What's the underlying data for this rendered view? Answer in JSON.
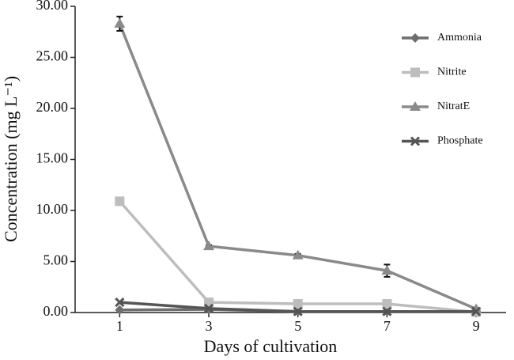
{
  "chart_data": {
    "type": "line",
    "xlabel": "Days of cultivation",
    "ylabel": "Concentration (mg L⁻¹)",
    "xlim": [
      0,
      9.85
    ],
    "xticks": [
      1,
      3,
      5,
      7,
      9
    ],
    "ylim": [
      0,
      30
    ],
    "yticks": [
      {
        "value": 0,
        "label": "0.00"
      },
      {
        "value": 5,
        "label": "5.00"
      },
      {
        "value": 10,
        "label": "10.00"
      },
      {
        "value": 15,
        "label": "15.00"
      },
      {
        "value": 20,
        "label": "20.00"
      },
      {
        "value": 25,
        "label": "25.00"
      },
      {
        "value": 30,
        "label": "30.00"
      }
    ],
    "x": [
      1,
      3,
      5,
      7,
      9
    ],
    "series": [
      {
        "name": "Ammonia",
        "color": "#6e6e6e",
        "marker": "diamond",
        "values": [
          0.25,
          0.3,
          0.1,
          0.1,
          0.1
        ]
      },
      {
        "name": "Nitrite",
        "color": "#bdbdbd",
        "marker": "square",
        "values": [
          10.9,
          1.0,
          0.85,
          0.85,
          0.05
        ]
      },
      {
        "name": "NitratE",
        "color": "#8a8a8a",
        "marker": "triangle",
        "values": [
          28.3,
          6.5,
          5.6,
          4.1,
          0.35
        ],
        "errors": [
          0.7,
          0.1,
          0.15,
          0.6,
          0.1
        ]
      },
      {
        "name": "Phosphate",
        "color": "#555555",
        "marker": "cross",
        "values": [
          1.0,
          0.4,
          0.1,
          0.1,
          0.1
        ]
      }
    ]
  }
}
